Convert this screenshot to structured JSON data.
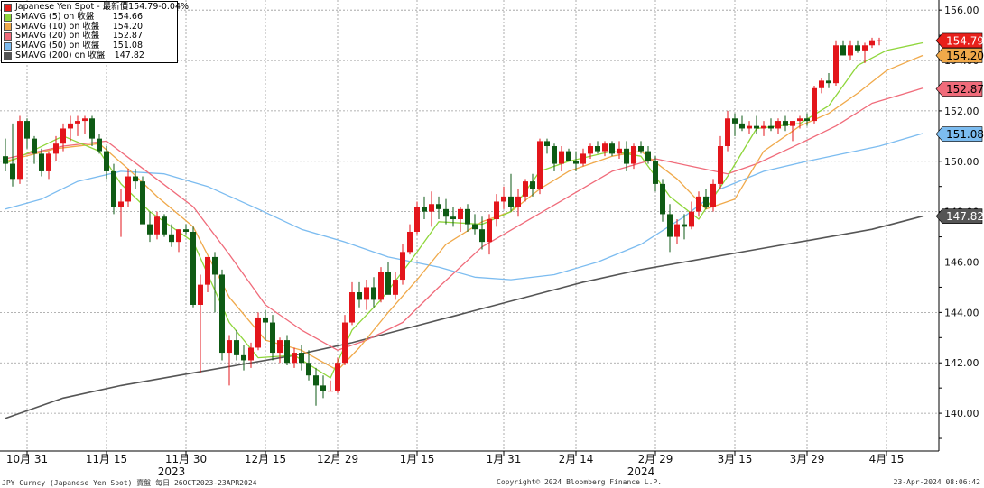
{
  "legend": {
    "main": {
      "label": "Japanese Yen Spot - 最新價",
      "value": "154.79",
      "change": "-0.04%",
      "color": "#e8201b"
    },
    "items": [
      {
        "label": "SMAVG (5)  on 收盤",
        "value": "154.66",
        "color": "#8ed63a"
      },
      {
        "label": "SMAVG (10)  on 收盤",
        "value": "154.20",
        "color": "#f0a94a"
      },
      {
        "label": "SMAVG (20)  on 收盤",
        "value": "152.87",
        "color": "#f06b7a"
      },
      {
        "label": "SMAVG (50)  on 收盤",
        "value": "151.08",
        "color": "#7cbcf0"
      },
      {
        "label": "SMAVG (200)  on 收盤",
        "value": "147.82",
        "color": "#555555"
      }
    ]
  },
  "footer": {
    "left": "JPY Curncy (Japanese Yen Spot) 賣盤  每日 26OCT2023-23APR2024",
    "center": "Copyright© 2024 Bloomberg Finance L.P.",
    "right": "23-Apr-2024 08:06:42"
  },
  "chart_data": {
    "type": "candlestick",
    "ylim": [
      138.5,
      156.4
    ],
    "yticks": [
      "156.00",
      "154.00",
      "152.00",
      "150.00",
      "148.00",
      "146.00",
      "144.00",
      "142.00",
      "140.00"
    ],
    "xticks": [
      {
        "label": "10月 31",
        "index": 3
      },
      {
        "label": "11月 15",
        "index": 14
      },
      {
        "label": "11月 30",
        "index": 25
      },
      {
        "label": "12月 15",
        "index": 36
      },
      {
        "label": "12月 29",
        "index": 46
      },
      {
        "label": "1月 15",
        "index": 57
      },
      {
        "label": "1月 31",
        "index": 69
      },
      {
        "label": "2月 14",
        "index": 79
      },
      {
        "label": "2月 29",
        "index": 90
      },
      {
        "label": "3月 15",
        "index": 101
      },
      {
        "label": "3月 29",
        "index": 111
      },
      {
        "label": "4月 15",
        "index": 122
      }
    ],
    "year_labels": [
      {
        "label": "2023",
        "index": 23
      },
      {
        "label": "2024",
        "index": 88
      }
    ],
    "bullish_color": "#e3151b",
    "bearish_color": "#0e5a14",
    "ohlc": [
      [
        150.2,
        150.9,
        149.6,
        149.9
      ],
      [
        149.9,
        151.5,
        149.0,
        149.3
      ],
      [
        149.3,
        151.8,
        149.1,
        151.6
      ],
      [
        151.6,
        151.7,
        150.5,
        150.9
      ],
      [
        150.9,
        151.0,
        149.9,
        150.3
      ],
      [
        150.3,
        150.5,
        149.4,
        149.6
      ],
      [
        149.6,
        150.4,
        149.3,
        150.3
      ],
      [
        150.3,
        151.0,
        150.0,
        150.7
      ],
      [
        150.7,
        151.5,
        150.4,
        151.3
      ],
      [
        151.3,
        151.8,
        150.8,
        151.5
      ],
      [
        151.5,
        151.8,
        151.0,
        151.6
      ],
      [
        151.6,
        151.8,
        151.1,
        151.7
      ],
      [
        151.7,
        151.8,
        150.6,
        150.9
      ],
      [
        150.9,
        151.1,
        150.3,
        150.4
      ],
      [
        150.4,
        150.6,
        149.3,
        149.6
      ],
      [
        149.6,
        149.9,
        147.9,
        148.2
      ],
      [
        148.2,
        148.9,
        147.0,
        148.4
      ],
      [
        148.4,
        149.7,
        148.2,
        149.4
      ],
      [
        149.4,
        149.7,
        148.9,
        149.2
      ],
      [
        149.2,
        149.4,
        147.6,
        147.5
      ],
      [
        147.5,
        148.0,
        146.8,
        147.1
      ],
      [
        147.1,
        148.0,
        146.9,
        147.8
      ],
      [
        147.8,
        147.9,
        147.0,
        147.1
      ],
      [
        147.1,
        147.5,
        146.6,
        146.8
      ],
      [
        146.8,
        147.3,
        146.4,
        147.3
      ],
      [
        147.3,
        147.5,
        147.1,
        147.2
      ],
      [
        147.2,
        147.4,
        144.2,
        144.3
      ],
      [
        144.3,
        145.5,
        141.6,
        145.1
      ],
      [
        145.1,
        146.2,
        144.8,
        146.2
      ],
      [
        146.2,
        146.4,
        144.0,
        145.5
      ],
      [
        145.5,
        145.7,
        142.1,
        142.4
      ],
      [
        142.4,
        143.1,
        141.1,
        142.9
      ],
      [
        142.9,
        143.3,
        142.1,
        142.3
      ],
      [
        142.3,
        142.7,
        141.7,
        142.1
      ],
      [
        142.1,
        142.8,
        141.8,
        142.6
      ],
      [
        142.6,
        144.0,
        142.5,
        143.8
      ],
      [
        143.8,
        144.1,
        142.9,
        143.6
      ],
      [
        143.6,
        143.9,
        142.1,
        142.4
      ],
      [
        142.4,
        143.0,
        142.0,
        142.9
      ],
      [
        142.9,
        143.1,
        141.9,
        142.0
      ],
      [
        142.0,
        142.6,
        141.8,
        142.4
      ],
      [
        142.4,
        142.7,
        141.7,
        142.0
      ],
      [
        142.0,
        142.5,
        141.3,
        141.5
      ],
      [
        141.5,
        141.8,
        140.3,
        141.1
      ],
      [
        141.1,
        141.5,
        140.6,
        140.9
      ],
      [
        140.9,
        141.3,
        140.9,
        140.9
      ],
      [
        140.9,
        142.2,
        140.8,
        142.0
      ],
      [
        142.0,
        143.9,
        141.9,
        143.6
      ],
      [
        143.6,
        145.2,
        143.5,
        144.8
      ],
      [
        144.8,
        145.2,
        144.2,
        144.5
      ],
      [
        144.5,
        145.3,
        144.1,
        145.0
      ],
      [
        145.0,
        145.4,
        144.2,
        144.5
      ],
      [
        144.5,
        145.8,
        144.4,
        145.6
      ],
      [
        145.6,
        146.0,
        144.8,
        144.7
      ],
      [
        144.7,
        145.6,
        144.5,
        145.3
      ],
      [
        145.3,
        146.7,
        145.1,
        146.4
      ],
      [
        146.4,
        147.5,
        146.3,
        147.2
      ],
      [
        147.2,
        148.4,
        147.1,
        148.2
      ],
      [
        148.2,
        148.6,
        147.7,
        148.0
      ],
      [
        148.0,
        148.8,
        147.4,
        148.3
      ],
      [
        148.3,
        148.6,
        147.7,
        148.1
      ],
      [
        148.1,
        148.5,
        147.5,
        147.8
      ],
      [
        147.8,
        148.2,
        147.4,
        147.7
      ],
      [
        147.7,
        148.2,
        147.2,
        148.1
      ],
      [
        148.1,
        148.3,
        147.2,
        147.5
      ],
      [
        147.5,
        147.9,
        147.1,
        147.3
      ],
      [
        147.3,
        147.8,
        146.5,
        146.8
      ],
      [
        146.8,
        147.9,
        146.3,
        147.7
      ],
      [
        147.7,
        148.7,
        147.4,
        148.4
      ],
      [
        148.4,
        149.0,
        148.1,
        148.6
      ],
      [
        148.6,
        149.5,
        148.0,
        148.2
      ],
      [
        148.2,
        148.9,
        147.8,
        148.6
      ],
      [
        148.6,
        149.3,
        148.4,
        149.2
      ],
      [
        149.2,
        149.5,
        148.6,
        148.9
      ],
      [
        148.9,
        150.9,
        148.7,
        150.8
      ],
      [
        150.8,
        150.9,
        150.3,
        150.6
      ],
      [
        150.6,
        150.7,
        149.6,
        149.9
      ],
      [
        149.9,
        150.6,
        149.6,
        150.4
      ],
      [
        150.4,
        150.5,
        150.0,
        150.0
      ],
      [
        150.0,
        150.4,
        149.6,
        149.9
      ],
      [
        149.9,
        150.5,
        149.8,
        150.3
      ],
      [
        150.3,
        150.7,
        150.1,
        150.6
      ],
      [
        150.6,
        150.8,
        150.3,
        150.4
      ],
      [
        150.4,
        150.8,
        150.2,
        150.7
      ],
      [
        150.7,
        150.8,
        150.2,
        150.3
      ],
      [
        150.3,
        150.8,
        150.1,
        150.5
      ],
      [
        150.5,
        150.8,
        149.6,
        149.9
      ],
      [
        149.9,
        150.7,
        149.7,
        150.6
      ],
      [
        150.6,
        150.8,
        150.3,
        150.4
      ],
      [
        150.4,
        150.6,
        149.9,
        150.0
      ],
      [
        150.0,
        150.2,
        148.8,
        149.1
      ],
      [
        149.1,
        149.3,
        147.6,
        147.9
      ],
      [
        147.9,
        148.3,
        146.4,
        147.0
      ],
      [
        147.0,
        147.7,
        146.7,
        147.5
      ],
      [
        147.5,
        147.9,
        146.9,
        147.4
      ],
      [
        147.4,
        148.4,
        147.3,
        148.0
      ],
      [
        148.0,
        148.8,
        147.8,
        148.6
      ],
      [
        148.6,
        148.9,
        148.1,
        148.2
      ],
      [
        148.2,
        149.3,
        148.0,
        149.1
      ],
      [
        149.1,
        151.0,
        148.9,
        150.6
      ],
      [
        150.6,
        152.0,
        150.4,
        151.7
      ],
      [
        151.7,
        151.9,
        151.0,
        151.5
      ],
      [
        151.5,
        151.8,
        151.2,
        151.3
      ],
      [
        151.3,
        151.6,
        151.1,
        151.4
      ],
      [
        151.4,
        151.8,
        151.1,
        151.3
      ],
      [
        151.3,
        151.6,
        151.0,
        151.4
      ],
      [
        151.4,
        151.7,
        151.2,
        151.3
      ],
      [
        151.3,
        151.7,
        151.1,
        151.6
      ],
      [
        151.6,
        151.8,
        151.2,
        151.4
      ],
      [
        151.4,
        151.6,
        150.8,
        151.6
      ],
      [
        151.6,
        151.8,
        151.3,
        151.7
      ],
      [
        151.7,
        151.9,
        151.4,
        151.6
      ],
      [
        151.6,
        153.0,
        151.5,
        152.9
      ],
      [
        152.9,
        153.3,
        152.7,
        153.2
      ],
      [
        153.2,
        153.5,
        152.9,
        153.1
      ],
      [
        153.1,
        154.8,
        153.0,
        154.6
      ],
      [
        154.6,
        154.8,
        154.2,
        154.2
      ],
      [
        154.2,
        154.8,
        154.0,
        154.6
      ],
      [
        154.6,
        154.8,
        154.3,
        154.4
      ],
      [
        154.4,
        154.7,
        153.9,
        154.6
      ],
      [
        154.6,
        154.9,
        154.5,
        154.8
      ],
      [
        154.8,
        154.9,
        154.6,
        154.8
      ]
    ],
    "sma5": [
      [
        0,
        149.9
      ],
      [
        8,
        151.0
      ],
      [
        13,
        150.4
      ],
      [
        16,
        149.1
      ],
      [
        20,
        148.0
      ],
      [
        26,
        146.8
      ],
      [
        31,
        143.6
      ],
      [
        35,
        142.2
      ],
      [
        40,
        142.3
      ],
      [
        45,
        141.4
      ],
      [
        48,
        143.3
      ],
      [
        52,
        144.5
      ],
      [
        56,
        146.0
      ],
      [
        60,
        147.6
      ],
      [
        66,
        147.5
      ],
      [
        70,
        148.0
      ],
      [
        74,
        149.6
      ],
      [
        78,
        150.0
      ],
      [
        84,
        150.4
      ],
      [
        88,
        150.2
      ],
      [
        92,
        148.6
      ],
      [
        96,
        147.7
      ],
      [
        100,
        149.4
      ],
      [
        104,
        151.3
      ],
      [
        110,
        151.5
      ],
      [
        114,
        152.2
      ],
      [
        118,
        153.8
      ],
      [
        122,
        154.4
      ],
      [
        127,
        154.7
      ]
    ],
    "sma10": [
      [
        0,
        150.0
      ],
      [
        7,
        150.5
      ],
      [
        13,
        150.7
      ],
      [
        17,
        149.7
      ],
      [
        21,
        148.6
      ],
      [
        26,
        147.4
      ],
      [
        31,
        144.6
      ],
      [
        36,
        142.9
      ],
      [
        41,
        142.5
      ],
      [
        46,
        141.7
      ],
      [
        49,
        142.6
      ],
      [
        53,
        144.0
      ],
      [
        57,
        145.3
      ],
      [
        61,
        146.7
      ],
      [
        66,
        147.6
      ],
      [
        70,
        148.0
      ],
      [
        74,
        148.9
      ],
      [
        78,
        149.6
      ],
      [
        84,
        150.2
      ],
      [
        88,
        150.4
      ],
      [
        93,
        149.3
      ],
      [
        97,
        148.1
      ],
      [
        101,
        148.5
      ],
      [
        105,
        150.4
      ],
      [
        110,
        151.4
      ],
      [
        114,
        151.9
      ],
      [
        118,
        152.7
      ],
      [
        122,
        153.6
      ],
      [
        127,
        154.2
      ]
    ],
    "sma20": [
      [
        0,
        150.1
      ],
      [
        8,
        150.6
      ],
      [
        14,
        150.8
      ],
      [
        20,
        149.5
      ],
      [
        26,
        148.2
      ],
      [
        31,
        146.3
      ],
      [
        36,
        144.3
      ],
      [
        41,
        143.3
      ],
      [
        46,
        142.5
      ],
      [
        50,
        142.9
      ],
      [
        55,
        143.6
      ],
      [
        60,
        145.0
      ],
      [
        66,
        146.6
      ],
      [
        72,
        147.6
      ],
      [
        78,
        148.6
      ],
      [
        84,
        149.6
      ],
      [
        90,
        150.1
      ],
      [
        95,
        149.8
      ],
      [
        100,
        149.5
      ],
      [
        104,
        149.9
      ],
      [
        110,
        150.7
      ],
      [
        115,
        151.4
      ],
      [
        120,
        152.3
      ],
      [
        127,
        152.9
      ]
    ],
    "sma50": [
      [
        0,
        148.1
      ],
      [
        5,
        148.5
      ],
      [
        10,
        149.2
      ],
      [
        16,
        149.6
      ],
      [
        22,
        149.5
      ],
      [
        28,
        149.0
      ],
      [
        35,
        148.1
      ],
      [
        41,
        147.3
      ],
      [
        47,
        146.8
      ],
      [
        53,
        146.2
      ],
      [
        60,
        145.8
      ],
      [
        65,
        145.4
      ],
      [
        70,
        145.3
      ],
      [
        76,
        145.5
      ],
      [
        82,
        146.0
      ],
      [
        88,
        146.7
      ],
      [
        94,
        147.8
      ],
      [
        99,
        148.9
      ],
      [
        105,
        149.6
      ],
      [
        111,
        150.0
      ],
      [
        116,
        150.3
      ],
      [
        121,
        150.6
      ],
      [
        127,
        151.1
      ]
    ],
    "sma200": [
      [
        0,
        139.8
      ],
      [
        8,
        140.6
      ],
      [
        16,
        141.1
      ],
      [
        24,
        141.5
      ],
      [
        32,
        141.9
      ],
      [
        40,
        142.3
      ],
      [
        48,
        142.8
      ],
      [
        56,
        143.4
      ],
      [
        64,
        144.0
      ],
      [
        72,
        144.6
      ],
      [
        80,
        145.2
      ],
      [
        88,
        145.7
      ],
      [
        96,
        146.1
      ],
      [
        104,
        146.5
      ],
      [
        112,
        146.9
      ],
      [
        120,
        147.3
      ],
      [
        127,
        147.82
      ]
    ]
  }
}
